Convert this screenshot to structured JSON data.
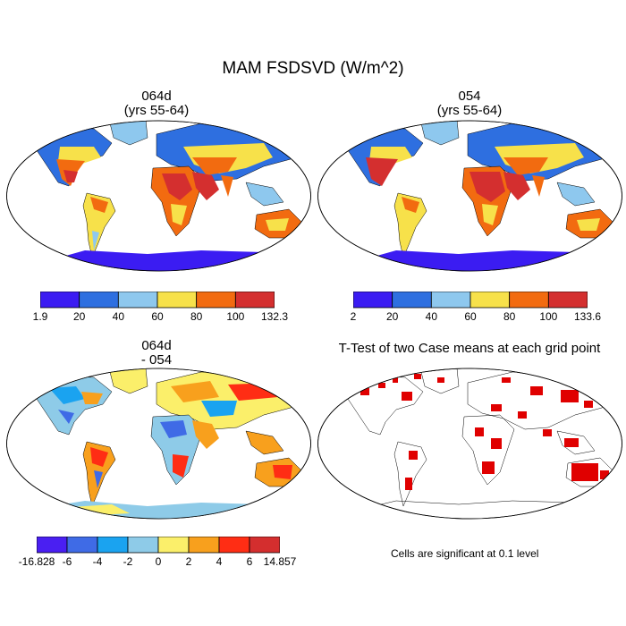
{
  "figure": {
    "title": "MAM FSDSVD (W/m^2)"
  },
  "panels": [
    {
      "title_line1": "064d",
      "title_line2": "(yrs 55-64)"
    },
    {
      "title_line1": "054",
      "title_line2": "(yrs 55-64)"
    },
    {
      "title_line1": "064d",
      "title_line2": "- 054"
    },
    {
      "title_line1": "T-Test of two Case means at each grid point",
      "title_line2": ""
    }
  ],
  "colorbars": [
    {
      "colors": [
        "#3b1cf2",
        "#2e6fe0",
        "#8ec8ee",
        "#f7e14a",
        "#f26b10",
        "#d42f2f"
      ],
      "labels": [
        "1.9",
        "20",
        "40",
        "60",
        "80",
        "100",
        "132.3"
      ]
    },
    {
      "colors": [
        "#3b1cf2",
        "#2e6fe0",
        "#8ec8ee",
        "#f7e14a",
        "#f26b10",
        "#d42f2f"
      ],
      "labels": [
        "2",
        "20",
        "40",
        "60",
        "80",
        "100",
        "133.6"
      ]
    },
    {
      "colors": [
        "#4a1ff2",
        "#3f6be6",
        "#1aa3f0",
        "#8ecbe8",
        "#fbef6a",
        "#f8a01d",
        "#ff2d14",
        "#d42e2e"
      ],
      "labels": [
        "-16.828",
        "-6",
        "-4",
        "-2",
        "0",
        "2",
        "4",
        "6",
        "14.857"
      ]
    }
  ],
  "significance_note": "Cells are significant at 0.1 level",
  "colors": {
    "ocean": "#ffffff",
    "coast": "#000000",
    "antarctica_abs": "#3b1cf2",
    "sig_cells": "#e00000"
  }
}
